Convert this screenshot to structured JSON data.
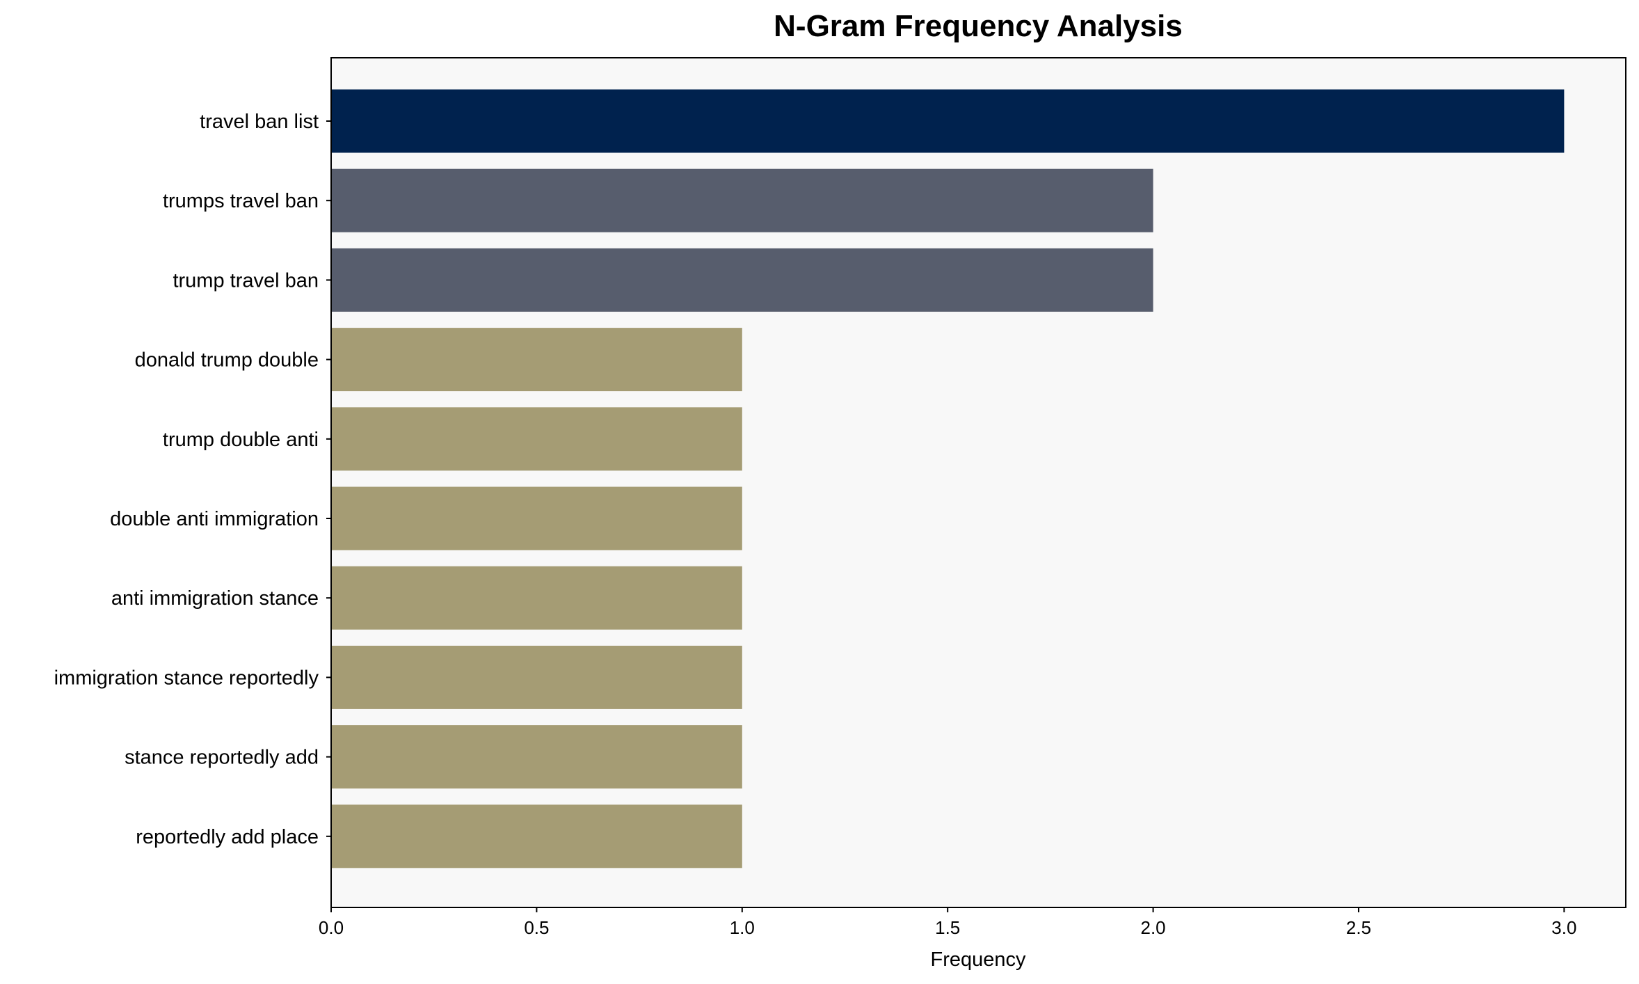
{
  "chart_data": {
    "type": "bar",
    "orientation": "horizontal",
    "title": "N-Gram Frequency Analysis",
    "xlabel": "Frequency",
    "ylabel": "",
    "xlim": [
      0,
      3.15
    ],
    "xticks": [
      "0.0",
      "0.5",
      "1.0",
      "1.5",
      "2.0",
      "2.5",
      "3.0"
    ],
    "grid": false,
    "background": "#f8f8f8",
    "categories": [
      "travel ban list",
      "trumps travel ban",
      "trump travel ban",
      "donald trump double",
      "trump double anti",
      "double anti immigration",
      "anti immigration stance",
      "immigration stance reportedly",
      "stance reportedly add",
      "reportedly add place"
    ],
    "values": [
      3,
      2,
      2,
      1,
      1,
      1,
      1,
      1,
      1,
      1
    ],
    "colors": [
      "#00224e",
      "#575d6d",
      "#575d6d",
      "#a59c74",
      "#a59c74",
      "#a59c74",
      "#a59c74",
      "#a59c74",
      "#a59c74",
      "#a59c74"
    ]
  }
}
